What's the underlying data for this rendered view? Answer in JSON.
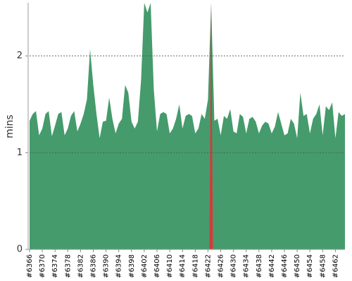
{
  "chart_data": {
    "type": "area",
    "y_label": "mins",
    "categories": [
      "#6366",
      null,
      null,
      null,
      "#6370",
      null,
      null,
      null,
      "#6374",
      null,
      null,
      null,
      "#6378",
      null,
      null,
      null,
      "#6382",
      null,
      null,
      null,
      "#6386",
      null,
      null,
      null,
      "#6390",
      null,
      null,
      null,
      "#6394",
      null,
      null,
      null,
      "#6398",
      null,
      null,
      null,
      "#6402",
      null,
      null,
      null,
      "#6406",
      null,
      null,
      null,
      "#6410",
      null,
      null,
      null,
      "#6414",
      null,
      null,
      null,
      "#6418",
      null,
      null,
      null,
      "#6422",
      null,
      null,
      null,
      "#6426",
      null,
      null,
      null,
      "#6430",
      null,
      null,
      null,
      "#6434",
      null,
      null,
      null,
      "#6438",
      null,
      null,
      null,
      "#6442",
      null,
      null,
      null,
      "#6446",
      null,
      null,
      null,
      "#6450",
      null,
      null,
      null,
      "#6454",
      null,
      null,
      null,
      "#6458",
      null,
      null,
      null,
      "#6462",
      null,
      null,
      null
    ],
    "series": [
      {
        "color": "#459b6c",
        "values": [
          1.33,
          1.4,
          1.43,
          1.18,
          1.25,
          1.4,
          1.43,
          1.17,
          1.28,
          1.4,
          1.42,
          1.18,
          1.25,
          1.38,
          1.43,
          1.22,
          1.3,
          1.4,
          1.55,
          2.07,
          1.7,
          1.4,
          1.15,
          1.32,
          1.33,
          1.57,
          1.35,
          1.2,
          1.3,
          1.35,
          1.7,
          1.62,
          1.32,
          1.25,
          1.32,
          1.75,
          2.55,
          2.45,
          2.55,
          1.65,
          1.22,
          1.4,
          1.42,
          1.4,
          1.2,
          1.25,
          1.35,
          1.5,
          1.25,
          1.38,
          1.4,
          1.38,
          1.2,
          1.25,
          1.4,
          1.35,
          1.55,
          2.55,
          1.33,
          1.35,
          1.18,
          1.38,
          1.35,
          1.45,
          1.22,
          1.2,
          1.4,
          1.37,
          1.2,
          1.35,
          1.37,
          1.32,
          1.2,
          1.28,
          1.32,
          1.3,
          1.2,
          1.27,
          1.42,
          1.3,
          1.18,
          1.2,
          1.35,
          1.3,
          1.15,
          1.62,
          1.38,
          1.4,
          1.2,
          1.35,
          1.4,
          1.5,
          1.18,
          1.48,
          1.44,
          1.52,
          1.15,
          1.42,
          1.38,
          1.4
        ]
      },
      {
        "color": "#d33b3b",
        "values": [
          null,
          null,
          null,
          null,
          null,
          null,
          null,
          null,
          null,
          null,
          null,
          null,
          null,
          null,
          null,
          null,
          null,
          null,
          null,
          null,
          null,
          null,
          null,
          null,
          null,
          null,
          null,
          null,
          null,
          null,
          null,
          null,
          null,
          null,
          null,
          null,
          null,
          null,
          null,
          null,
          null,
          null,
          null,
          null,
          null,
          null,
          null,
          null,
          null,
          null,
          null,
          null,
          null,
          null,
          null,
          null,
          null,
          2.55,
          null,
          null,
          null,
          null,
          null,
          null,
          null,
          null,
          null,
          null,
          null,
          null,
          null,
          null,
          null,
          null,
          null,
          null,
          null,
          null,
          null,
          null,
          null,
          null,
          null,
          null,
          null,
          null,
          null,
          null,
          null,
          null,
          null,
          null,
          null,
          null,
          null,
          null,
          null,
          null,
          null,
          null
        ]
      }
    ],
    "ylim": [
      0,
      2.55
    ],
    "yticks": [
      0,
      1,
      2
    ],
    "grid": true
  }
}
